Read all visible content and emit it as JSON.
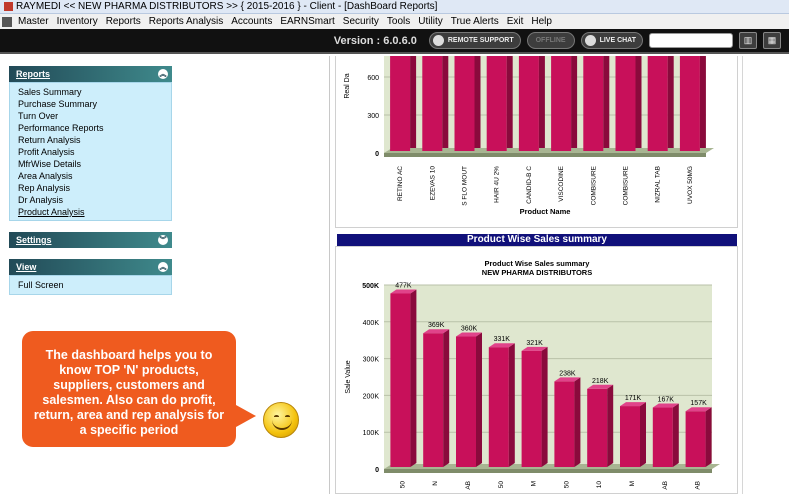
{
  "window": {
    "title": "RAYMEDI << NEW PHARMA DISTRIBUTORS >> { 2015-2016 } - Client - [DashBoard Reports]"
  },
  "menu": [
    "Master",
    "Inventory",
    "Reports",
    "Reports Analysis",
    "Accounts",
    "EARNSmart",
    "Security",
    "Tools",
    "Utility",
    "True Alerts",
    "Exit",
    "Help"
  ],
  "toolbar": {
    "version": "Version : 6.0.6.0",
    "remote_support": "REMOTE SUPPORT",
    "offline": "OFFLINE",
    "live_chat": "LIVE CHAT",
    "search_value": ""
  },
  "sidebar": {
    "reports_title": "Reports",
    "reports_items": [
      "Sales Summary",
      "Purchase Summary",
      "Turn Over",
      "Performance Reports",
      "Return Analysis",
      "Profit Analysis",
      "MfrWise Details",
      "Area Analysis",
      "Rep Analysis",
      "Dr Analysis",
      "Product Analysis"
    ],
    "settings_title": "Settings",
    "view_title": "View",
    "view_items": [
      "Full Screen"
    ]
  },
  "callout": {
    "text": "The dashboard helps you to know TOP 'N' products, suppliers, customers and salesmen. Also can do profit, return, area and rep analysis for a specific period"
  },
  "chart_data": [
    {
      "type": "bar",
      "ylabel": "Real Da",
      "xlabel": "Product Name",
      "yticks": [
        "0",
        "300",
        "600"
      ],
      "categories": [
        "RETINO AC",
        "EZEVAS 10",
        "S FLO MOUT",
        "HAIR 4U 2%",
        "CANDID-B C",
        "VISCODINE",
        "COMBISURE",
        "COMBISURE",
        "NIZRAL TAB",
        "UVOX 50MG"
      ],
      "note": "bars extend above the visible top of the chart area"
    },
    {
      "type": "bar",
      "header": "Product Wise Sales summary",
      "title": "Product Wise Sales summary",
      "subtitle": "NEW PHARMA DISTRIBUTORS",
      "ylabel": "Sale Value",
      "yticks": [
        "0",
        "100K",
        "200K",
        "300K",
        "400K",
        "500K"
      ],
      "ylim": [
        0,
        500
      ],
      "values": [
        477,
        369,
        360,
        331,
        321,
        238,
        218,
        171,
        167,
        157
      ],
      "value_labels": [
        "477K",
        "369K",
        "360K",
        "331K",
        "321K",
        "238K",
        "218K",
        "171K",
        "167K",
        "157K"
      ],
      "xtick_fragments": [
        "50",
        "N",
        "AB",
        "50",
        "M",
        "50",
        "10",
        "M",
        "AB",
        "AB"
      ]
    }
  ],
  "colors": {
    "bar": "#c8105a",
    "bar_side": "#8a0a3c",
    "plot_bg": "#dfe7cf",
    "header_blue": "#10107a",
    "callout": "#ef5b1f"
  }
}
